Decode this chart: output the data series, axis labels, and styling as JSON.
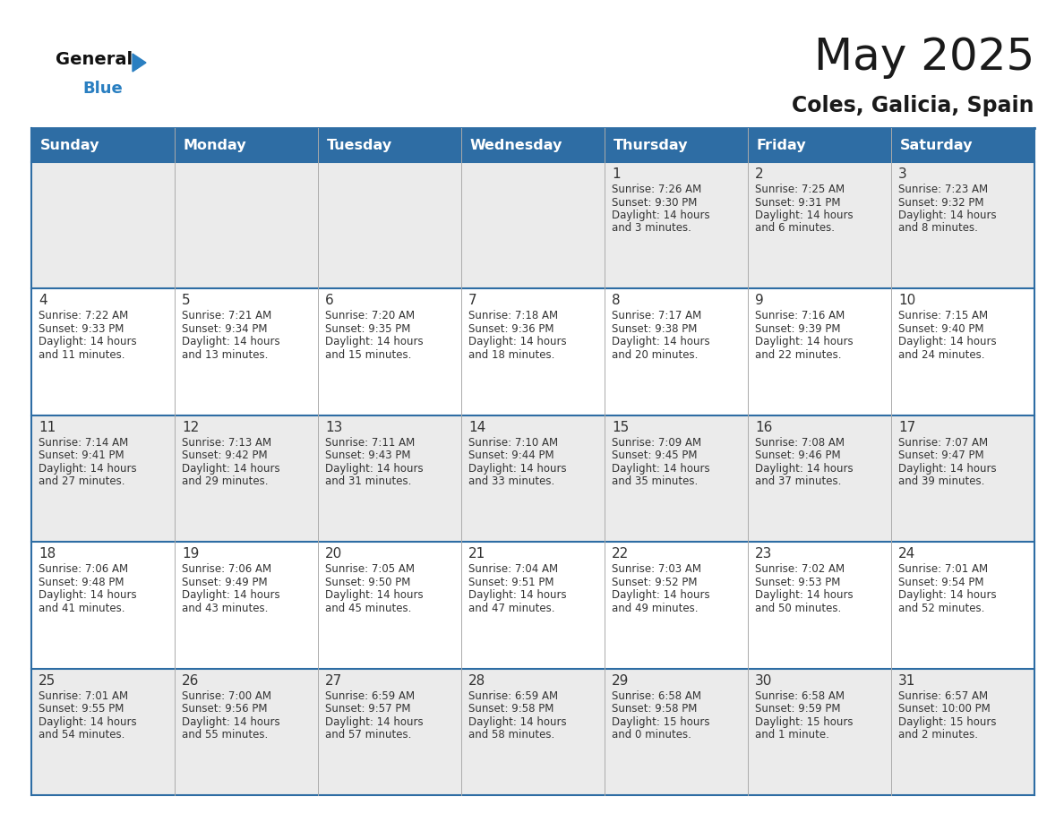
{
  "title": "May 2025",
  "subtitle": "Coles, Galicia, Spain",
  "days_header": [
    "Sunday",
    "Monday",
    "Tuesday",
    "Wednesday",
    "Thursday",
    "Friday",
    "Saturday"
  ],
  "header_bg": "#2e6da4",
  "header_text": "#ffffff",
  "row_bg_odd": "#ebebeb",
  "row_bg_even": "#ffffff",
  "day_num_color": "#333333",
  "data_text_color": "#333333",
  "title_color": "#1a1a1a",
  "subtitle_color": "#1a1a1a",
  "logo_general_color": "#111111",
  "logo_blue_color": "#2a7fc1",
  "border_color": "#2e6da4",
  "cell_divider_color": "#aaaaaa",
  "calendar": [
    [
      {
        "day": null,
        "sunrise": null,
        "sunset": null,
        "daylight": null
      },
      {
        "day": null,
        "sunrise": null,
        "sunset": null,
        "daylight": null
      },
      {
        "day": null,
        "sunrise": null,
        "sunset": null,
        "daylight": null
      },
      {
        "day": null,
        "sunrise": null,
        "sunset": null,
        "daylight": null
      },
      {
        "day": 1,
        "sunrise": "7:26 AM",
        "sunset": "9:30 PM",
        "daylight": "14 hours\nand 3 minutes."
      },
      {
        "day": 2,
        "sunrise": "7:25 AM",
        "sunset": "9:31 PM",
        "daylight": "14 hours\nand 6 minutes."
      },
      {
        "day": 3,
        "sunrise": "7:23 AM",
        "sunset": "9:32 PM",
        "daylight": "14 hours\nand 8 minutes."
      }
    ],
    [
      {
        "day": 4,
        "sunrise": "7:22 AM",
        "sunset": "9:33 PM",
        "daylight": "14 hours\nand 11 minutes."
      },
      {
        "day": 5,
        "sunrise": "7:21 AM",
        "sunset": "9:34 PM",
        "daylight": "14 hours\nand 13 minutes."
      },
      {
        "day": 6,
        "sunrise": "7:20 AM",
        "sunset": "9:35 PM",
        "daylight": "14 hours\nand 15 minutes."
      },
      {
        "day": 7,
        "sunrise": "7:18 AM",
        "sunset": "9:36 PM",
        "daylight": "14 hours\nand 18 minutes."
      },
      {
        "day": 8,
        "sunrise": "7:17 AM",
        "sunset": "9:38 PM",
        "daylight": "14 hours\nand 20 minutes."
      },
      {
        "day": 9,
        "sunrise": "7:16 AM",
        "sunset": "9:39 PM",
        "daylight": "14 hours\nand 22 minutes."
      },
      {
        "day": 10,
        "sunrise": "7:15 AM",
        "sunset": "9:40 PM",
        "daylight": "14 hours\nand 24 minutes."
      }
    ],
    [
      {
        "day": 11,
        "sunrise": "7:14 AM",
        "sunset": "9:41 PM",
        "daylight": "14 hours\nand 27 minutes."
      },
      {
        "day": 12,
        "sunrise": "7:13 AM",
        "sunset": "9:42 PM",
        "daylight": "14 hours\nand 29 minutes."
      },
      {
        "day": 13,
        "sunrise": "7:11 AM",
        "sunset": "9:43 PM",
        "daylight": "14 hours\nand 31 minutes."
      },
      {
        "day": 14,
        "sunrise": "7:10 AM",
        "sunset": "9:44 PM",
        "daylight": "14 hours\nand 33 minutes."
      },
      {
        "day": 15,
        "sunrise": "7:09 AM",
        "sunset": "9:45 PM",
        "daylight": "14 hours\nand 35 minutes."
      },
      {
        "day": 16,
        "sunrise": "7:08 AM",
        "sunset": "9:46 PM",
        "daylight": "14 hours\nand 37 minutes."
      },
      {
        "day": 17,
        "sunrise": "7:07 AM",
        "sunset": "9:47 PM",
        "daylight": "14 hours\nand 39 minutes."
      }
    ],
    [
      {
        "day": 18,
        "sunrise": "7:06 AM",
        "sunset": "9:48 PM",
        "daylight": "14 hours\nand 41 minutes."
      },
      {
        "day": 19,
        "sunrise": "7:06 AM",
        "sunset": "9:49 PM",
        "daylight": "14 hours\nand 43 minutes."
      },
      {
        "day": 20,
        "sunrise": "7:05 AM",
        "sunset": "9:50 PM",
        "daylight": "14 hours\nand 45 minutes."
      },
      {
        "day": 21,
        "sunrise": "7:04 AM",
        "sunset": "9:51 PM",
        "daylight": "14 hours\nand 47 minutes."
      },
      {
        "day": 22,
        "sunrise": "7:03 AM",
        "sunset": "9:52 PM",
        "daylight": "14 hours\nand 49 minutes."
      },
      {
        "day": 23,
        "sunrise": "7:02 AM",
        "sunset": "9:53 PM",
        "daylight": "14 hours\nand 50 minutes."
      },
      {
        "day": 24,
        "sunrise": "7:01 AM",
        "sunset": "9:54 PM",
        "daylight": "14 hours\nand 52 minutes."
      }
    ],
    [
      {
        "day": 25,
        "sunrise": "7:01 AM",
        "sunset": "9:55 PM",
        "daylight": "14 hours\nand 54 minutes."
      },
      {
        "day": 26,
        "sunrise": "7:00 AM",
        "sunset": "9:56 PM",
        "daylight": "14 hours\nand 55 minutes."
      },
      {
        "day": 27,
        "sunrise": "6:59 AM",
        "sunset": "9:57 PM",
        "daylight": "14 hours\nand 57 minutes."
      },
      {
        "day": 28,
        "sunrise": "6:59 AM",
        "sunset": "9:58 PM",
        "daylight": "14 hours\nand 58 minutes."
      },
      {
        "day": 29,
        "sunrise": "6:58 AM",
        "sunset": "9:58 PM",
        "daylight": "15 hours\nand 0 minutes."
      },
      {
        "day": 30,
        "sunrise": "6:58 AM",
        "sunset": "9:59 PM",
        "daylight": "15 hours\nand 1 minute."
      },
      {
        "day": 31,
        "sunrise": "6:57 AM",
        "sunset": "10:00 PM",
        "daylight": "15 hours\nand 2 minutes."
      }
    ]
  ]
}
